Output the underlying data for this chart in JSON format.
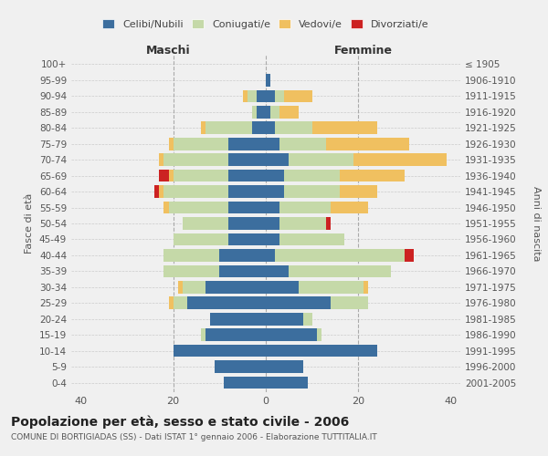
{
  "age_groups": [
    "0-4",
    "5-9",
    "10-14",
    "15-19",
    "20-24",
    "25-29",
    "30-34",
    "35-39",
    "40-44",
    "45-49",
    "50-54",
    "55-59",
    "60-64",
    "65-69",
    "70-74",
    "75-79",
    "80-84",
    "85-89",
    "90-94",
    "95-99",
    "100+"
  ],
  "birth_years": [
    "2001-2005",
    "1996-2000",
    "1991-1995",
    "1986-1990",
    "1981-1985",
    "1976-1980",
    "1971-1975",
    "1966-1970",
    "1961-1965",
    "1956-1960",
    "1951-1955",
    "1946-1950",
    "1941-1945",
    "1936-1940",
    "1931-1935",
    "1926-1930",
    "1921-1925",
    "1916-1920",
    "1911-1915",
    "1906-1910",
    "≤ 1905"
  ],
  "colors": {
    "celibe": "#3c6e9e",
    "coniugato": "#c5d9a8",
    "vedovo": "#f0c060",
    "divorziato": "#cc2222"
  },
  "maschi": {
    "celibe": [
      9,
      11,
      20,
      13,
      12,
      17,
      13,
      10,
      10,
      8,
      8,
      8,
      8,
      8,
      8,
      8,
      3,
      2,
      2,
      0,
      0
    ],
    "coniugato": [
      0,
      0,
      0,
      1,
      0,
      3,
      5,
      12,
      12,
      12,
      10,
      13,
      14,
      12,
      14,
      12,
      10,
      1,
      2,
      0,
      0
    ],
    "vedovo": [
      0,
      0,
      0,
      0,
      0,
      1,
      1,
      0,
      0,
      0,
      0,
      1,
      1,
      1,
      1,
      1,
      1,
      0,
      1,
      0,
      0
    ],
    "divorziato": [
      0,
      0,
      0,
      0,
      0,
      0,
      0,
      0,
      0,
      0,
      0,
      0,
      1,
      2,
      0,
      0,
      0,
      0,
      0,
      0,
      0
    ]
  },
  "femmine": {
    "nubile": [
      9,
      8,
      24,
      11,
      8,
      14,
      7,
      5,
      2,
      3,
      3,
      3,
      4,
      4,
      5,
      3,
      2,
      1,
      2,
      1,
      0
    ],
    "coniugata": [
      0,
      0,
      0,
      1,
      2,
      8,
      14,
      22,
      28,
      14,
      10,
      11,
      12,
      12,
      14,
      10,
      8,
      2,
      2,
      0,
      0
    ],
    "vedova": [
      0,
      0,
      0,
      0,
      0,
      0,
      1,
      0,
      0,
      0,
      0,
      8,
      8,
      14,
      20,
      18,
      14,
      4,
      6,
      0,
      0
    ],
    "divorziata": [
      0,
      0,
      0,
      0,
      0,
      0,
      0,
      0,
      2,
      0,
      1,
      0,
      0,
      0,
      0,
      0,
      0,
      0,
      0,
      0,
      0
    ]
  },
  "xlim": 42,
  "title": "Popolazione per età, sesso e stato civile - 2006",
  "subtitle": "COMUNE DI BORTIGIADAS (SS) - Dati ISTAT 1° gennaio 2006 - Elaborazione TUTTITALIA.IT",
  "ylabel_left": "Fasce di età",
  "ylabel_right": "Anni di nascita",
  "xlabel_maschi": "Maschi",
  "xlabel_femmine": "Femmine",
  "legend_labels": [
    "Celibi/Nubili",
    "Coniugati/e",
    "Vedovi/e",
    "Divorziati/e"
  ],
  "bg_color": "#f0f0f0",
  "grid_color": "#cccccc"
}
